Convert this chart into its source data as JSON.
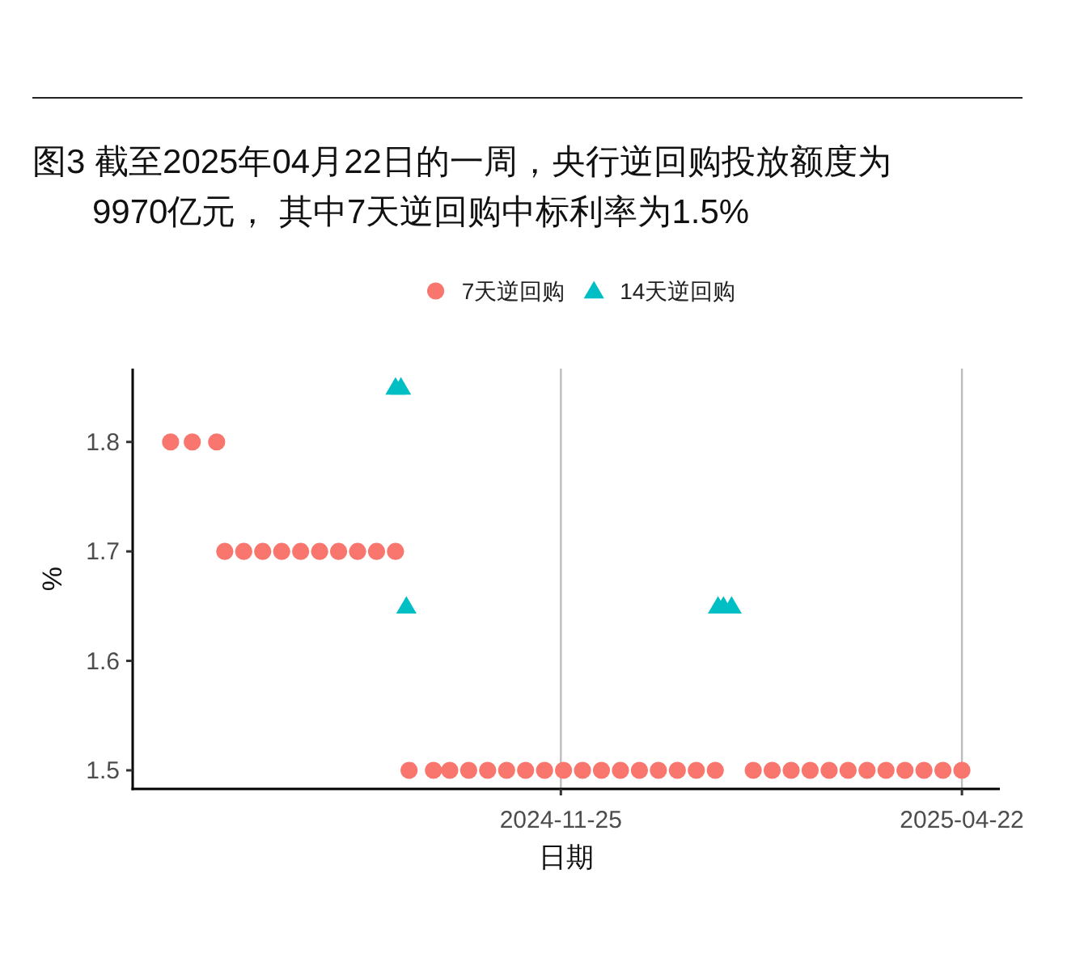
{
  "chart_data": {
    "type": "scatter",
    "title": "图3 截至2025年04月22日的一周，央行逆回购投放额度为9970亿元， 其中7天逆回购中标利率为1.5%",
    "xlabel": "日期",
    "ylabel": "%",
    "xlim": [
      "2024-06-20",
      "2025-05-06"
    ],
    "ylim": [
      1.483,
      1.867
    ],
    "xticks": [
      "2024-11-25",
      "2025-04-22"
    ],
    "yticks": [
      1.5,
      1.6,
      1.7,
      1.8
    ],
    "grid": "x",
    "legend": "top",
    "series": [
      {
        "name": "7天逆回购",
        "color": "#f8766d",
        "marker": "circle",
        "x": [
          "2024-07-04",
          "2024-07-12",
          "2024-07-21",
          "2024-07-24",
          "2024-07-31",
          "2024-08-07",
          "2024-08-14",
          "2024-08-21",
          "2024-08-28",
          "2024-09-04",
          "2024-09-11",
          "2024-09-18",
          "2024-09-25",
          "2024-09-30",
          "2024-10-09",
          "2024-10-15",
          "2024-10-22",
          "2024-10-29",
          "2024-11-05",
          "2024-11-12",
          "2024-11-19",
          "2024-11-26",
          "2024-12-03",
          "2024-12-10",
          "2024-12-17",
          "2024-12-24",
          "2024-12-31",
          "2025-01-07",
          "2025-01-14",
          "2025-01-21",
          "2025-02-04",
          "2025-02-11",
          "2025-02-18",
          "2025-02-25",
          "2025-03-04",
          "2025-03-11",
          "2025-03-18",
          "2025-03-25",
          "2025-04-01",
          "2025-04-08",
          "2025-04-15",
          "2025-04-22"
        ],
        "values": [
          1.8,
          1.8,
          1.8,
          1.7,
          1.7,
          1.7,
          1.7,
          1.7,
          1.7,
          1.7,
          1.7,
          1.7,
          1.7,
          1.5,
          1.5,
          1.5,
          1.5,
          1.5,
          1.5,
          1.5,
          1.5,
          1.5,
          1.5,
          1.5,
          1.5,
          1.5,
          1.5,
          1.5,
          1.5,
          1.5,
          1.5,
          1.5,
          1.5,
          1.5,
          1.5,
          1.5,
          1.5,
          1.5,
          1.5,
          1.5,
          1.5,
          1.5
        ]
      },
      {
        "name": "14天逆回购",
        "color": "#00bfc4",
        "marker": "triangle",
        "x": [
          "2024-09-25",
          "2024-09-27",
          "2024-09-29",
          "2025-01-22",
          "2025-01-24",
          "2025-01-27"
        ],
        "values": [
          1.85,
          1.85,
          1.65,
          1.65,
          1.65,
          1.65
        ]
      }
    ]
  }
}
